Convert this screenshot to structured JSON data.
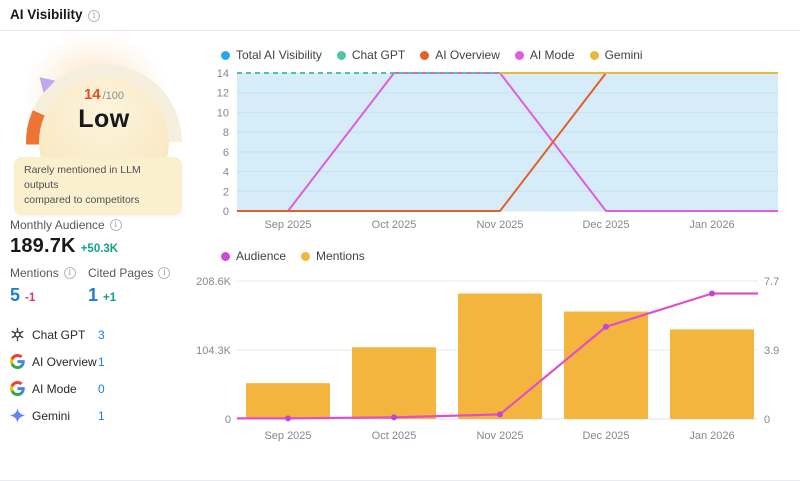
{
  "header": {
    "title": "AI Visibility"
  },
  "gauge": {
    "score": "14",
    "score_suffix": "/100",
    "rating": "Low",
    "tooltip": {
      "line1": "Rarely mentioned in LLM outputs",
      "line2": "compared to competitors"
    }
  },
  "stats": {
    "monthly_audience": {
      "label": "Monthly Audience",
      "value": "189.7K",
      "delta": "+50.3K"
    },
    "mentions": {
      "label": "Mentions",
      "value": "5",
      "delta": "-1"
    },
    "cited_pages": {
      "label": "Cited Pages",
      "value": "1",
      "delta": "+1"
    }
  },
  "sources": [
    {
      "name": "Chat GPT",
      "count": "3",
      "icon": "openai-icon"
    },
    {
      "name": "AI Overview",
      "count": "1",
      "icon": "google-icon"
    },
    {
      "name": "AI Mode",
      "count": "0",
      "icon": "google-icon"
    },
    {
      "name": "Gemini",
      "count": "1",
      "icon": "gemini-icon"
    }
  ],
  "chart_data": [
    {
      "type": "area",
      "title": "",
      "categories": [
        "Sep 2025",
        "Oct 2025",
        "Nov 2025",
        "Dec 2025",
        "Jan 2026"
      ],
      "ylim": [
        0,
        14
      ],
      "yticks": [
        0,
        2,
        4,
        6,
        8,
        10,
        12,
        14
      ],
      "grid": true,
      "legend_position": "top",
      "series": [
        {
          "name": "Total AI Visibility",
          "color": "#2aa7ea",
          "style": "area",
          "fill": "#d6edf9",
          "values": [
            14,
            14,
            14,
            14,
            14
          ]
        },
        {
          "name": "Chat GPT",
          "color": "#4ec7a0",
          "style": "dashed",
          "values": [
            14,
            14,
            14,
            14,
            14
          ]
        },
        {
          "name": "AI Overview",
          "color": "#e2602c",
          "style": "solid",
          "values": [
            0,
            0,
            0,
            14,
            14
          ]
        },
        {
          "name": "AI Mode",
          "color": "#e05ce0",
          "style": "solid",
          "values": [
            0,
            14,
            14,
            0,
            0
          ]
        },
        {
          "name": "Gemini",
          "color": "#e9b93e",
          "style": "solid",
          "values": [
            null,
            null,
            14,
            14,
            14
          ]
        }
      ]
    },
    {
      "type": "bar+line",
      "title": "",
      "categories": [
        "Sep 2025",
        "Oct 2025",
        "Nov 2025",
        "Dec 2025",
        "Jan 2026"
      ],
      "grid": true,
      "legend_position": "top",
      "left_axis": {
        "max": 208600,
        "ticks": [
          {
            "v": 0,
            "label": "0"
          },
          {
            "v": 104300,
            "label": "104.3K"
          },
          {
            "v": 208600,
            "label": "208.6K"
          }
        ]
      },
      "right_axis": {
        "max": 7.7,
        "ticks": [
          {
            "v": 0,
            "label": "0"
          },
          {
            "v": 3.85,
            "label": "3.9"
          },
          {
            "v": 7.7,
            "label": "7.7"
          }
        ]
      },
      "series": [
        {
          "name": "Audience",
          "type": "line",
          "axis": "left",
          "color": "#cf49d6",
          "line_color": "#e14fc6",
          "marker_color": "#c244d8",
          "values": [
            1000,
            2500,
            7000,
            139400,
            189700
          ]
        },
        {
          "name": "Mentions",
          "type": "bar",
          "axis": "right",
          "color": "#f4b53e",
          "values": [
            2,
            4,
            7,
            6,
            5
          ]
        }
      ]
    }
  ]
}
